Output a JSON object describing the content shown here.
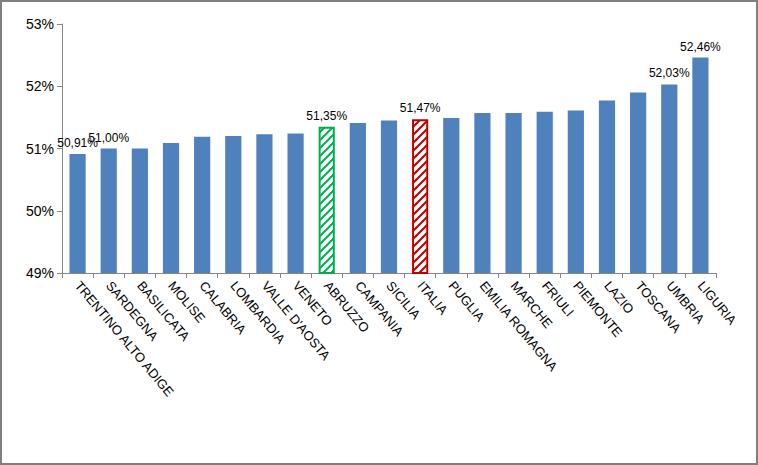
{
  "chart_data": {
    "type": "bar",
    "categories": [
      "TRENTINO ALTO ADIGE",
      "SARDEGNA",
      "BASILICATA",
      "MOLISE",
      "CALABRIA",
      "LOMBARDIA",
      "VALLE D'AOSTA",
      "VENETO",
      "ABRUZZO",
      "CAMPANIA",
      "SICILIA",
      "ITALIA",
      "PUGLIA",
      "EMILIA ROMAGNA",
      "MARCHE",
      "FRIULI",
      "PIEMONTE",
      "LAZIO",
      "TOSCANA",
      "UMBRIA",
      "LIGURIA"
    ],
    "values": [
      50.91,
      51.0,
      51.0,
      51.09,
      51.19,
      51.2,
      51.23,
      51.24,
      51.35,
      51.41,
      51.45,
      51.47,
      51.49,
      51.57,
      51.57,
      51.59,
      51.61,
      51.77,
      51.9,
      52.03,
      52.46
    ],
    "value_labels": [
      "50,91%",
      "51,00%",
      null,
      null,
      null,
      null,
      null,
      null,
      "51,35%",
      null,
      null,
      "51,47%",
      null,
      null,
      null,
      null,
      null,
      null,
      null,
      "52,03%",
      "52,46%"
    ],
    "colors": [
      "#4f81bd",
      "#4f81bd",
      "#4f81bd",
      "#4f81bd",
      "#4f81bd",
      "#4f81bd",
      "#4f81bd",
      "#4f81bd",
      "#00b050",
      "#4f81bd",
      "#4f81bd",
      "#c00000",
      "#4f81bd",
      "#4f81bd",
      "#4f81bd",
      "#4f81bd",
      "#4f81bd",
      "#4f81bd",
      "#4f81bd",
      "#4f81bd",
      "#4f81bd"
    ],
    "ylim": [
      49,
      53
    ],
    "yticks": [
      {
        "value": 49,
        "label": "49%"
      },
      {
        "value": 50,
        "label": "50%"
      },
      {
        "value": 51,
        "label": "51%"
      },
      {
        "value": 52,
        "label": "52%"
      },
      {
        "value": 53,
        "label": "53%"
      }
    ],
    "data_labels": true,
    "grid": false
  }
}
